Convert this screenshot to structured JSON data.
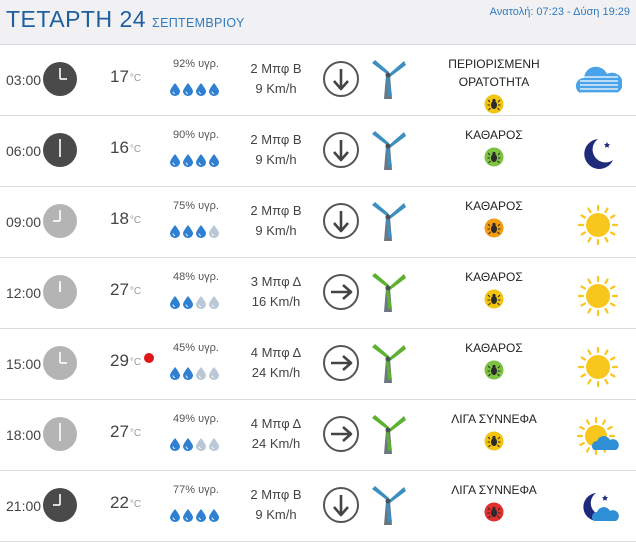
{
  "header": {
    "day": "ΤΕΤΑΡΤΗ 24",
    "month": "ΣΕΠΤΕΜΒΡΙΟΥ",
    "sunrise_label": "Ανατολή: 07:23",
    "separator": " - ",
    "sunset_label": "Δύση 19:29"
  },
  "temp_unit": "°C",
  "rows": [
    {
      "time": "03:00",
      "clock": "dark",
      "hour": 3,
      "temp": "17",
      "humidity": "92% υγρ.",
      "drops_filled": 4,
      "wind_bft": "2 Μπφ Β",
      "wind_speed": "9 Km/h",
      "direction": "north",
      "mill": "blue",
      "condition": [
        "ΠΕΡΙΟΡΙΣΜΕΝΗ",
        "ΟΡΑΤΟΤΗΤΑ"
      ],
      "bug_color": "#f1c40f",
      "icon": "fog-icon",
      "hot": false
    },
    {
      "time": "06:00",
      "clock": "dark",
      "hour": 6,
      "temp": "16",
      "humidity": "90% υγρ.",
      "drops_filled": 4,
      "wind_bft": "2 Μπφ Β",
      "wind_speed": "9 Km/h",
      "direction": "north",
      "mill": "blue",
      "condition": [
        "ΚΑΘΑΡΟΣ"
      ],
      "bug_color": "#7dc242",
      "icon": "moon-icon",
      "hot": false
    },
    {
      "time": "09:00",
      "clock": "light",
      "hour": 9,
      "temp": "18",
      "humidity": "75% υγρ.",
      "drops_filled": 3,
      "wind_bft": "2 Μπφ Β",
      "wind_speed": "9 Km/h",
      "direction": "north",
      "mill": "blue",
      "condition": [
        "ΚΑΘΑΡΟΣ"
      ],
      "bug_color": "#f39c12",
      "icon": "sun-icon",
      "hot": false
    },
    {
      "time": "12:00",
      "clock": "light",
      "hour": 12,
      "temp": "27",
      "humidity": "48% υγρ.",
      "drops_filled": 2,
      "wind_bft": "3 Μπφ Δ",
      "wind_speed": "16 Km/h",
      "direction": "east",
      "mill": "green",
      "condition": [
        "ΚΑΘΑΡΟΣ"
      ],
      "bug_color": "#f1c40f",
      "icon": "sun-icon",
      "hot": false
    },
    {
      "time": "15:00",
      "clock": "light",
      "hour": 3,
      "temp": "29",
      "humidity": "45% υγρ.",
      "drops_filled": 2,
      "wind_bft": "4 Μπφ Δ",
      "wind_speed": "24 Km/h",
      "direction": "east",
      "mill": "green",
      "condition": [
        "ΚΑΘΑΡΟΣ"
      ],
      "bug_color": "#7dc242",
      "icon": "sun-icon",
      "hot": true
    },
    {
      "time": "18:00",
      "clock": "light",
      "hour": 6,
      "temp": "27",
      "humidity": "49% υγρ.",
      "drops_filled": 2,
      "wind_bft": "4 Μπφ Δ",
      "wind_speed": "24 Km/h",
      "direction": "east",
      "mill": "green",
      "condition": [
        "ΛΙΓΑ ΣΥΝΝΕΦΑ"
      ],
      "bug_color": "#f1c40f",
      "icon": "sun-cloud-icon",
      "hot": false
    },
    {
      "time": "21:00",
      "clock": "dark",
      "hour": 9,
      "temp": "22",
      "humidity": "77% υγρ.",
      "drops_filled": 4,
      "wind_bft": "2 Μπφ Β",
      "wind_speed": "9 Km/h",
      "direction": "north",
      "mill": "blue",
      "condition": [
        "ΛΙΓΑ ΣΥΝΝΕΦΑ"
      ],
      "bug_color": "#e03131",
      "icon": "moon-cloud-icon",
      "hot": false
    }
  ],
  "colors": {
    "blue_title": "#1f5f9e",
    "drop_filled": "#2f80d1",
    "drop_empty": "#b9c7d6",
    "sun": "#f7c71e",
    "moon": "#1e2a7a",
    "clock_dark": "#4a4a4a",
    "clock_light": "#b4b4b4"
  }
}
